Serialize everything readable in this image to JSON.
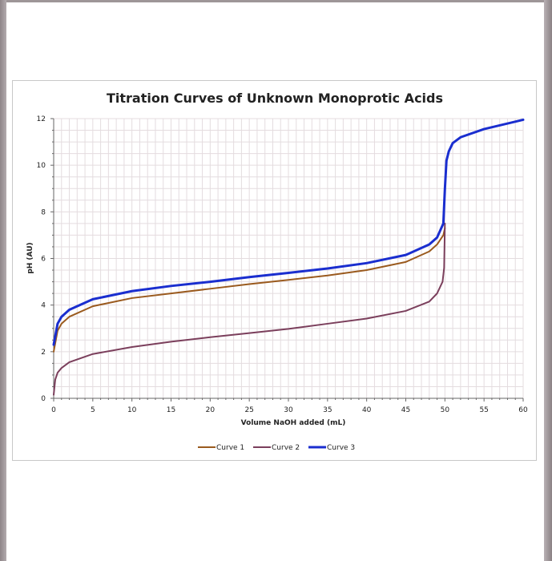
{
  "chart_data": {
    "type": "line",
    "title": "Titration Curves of Unknown Monoprotic Acids",
    "xlabel": "Volume NaOH added (mL)",
    "ylabel": "pH (AU)",
    "xlim": [
      0,
      60
    ],
    "ylim": [
      0,
      12
    ],
    "x_ticks": [
      0,
      5,
      10,
      15,
      20,
      25,
      30,
      35,
      40,
      45,
      50,
      55,
      60
    ],
    "y_ticks": [
      0,
      2,
      4,
      6,
      8,
      10,
      12
    ],
    "grid": true,
    "legend_position": "bottom",
    "series": [
      {
        "name": "Curve 1",
        "color": "#9a5a1e",
        "width": 2,
        "x": [
          0,
          0.5,
          1,
          2,
          5,
          10,
          15,
          20,
          25,
          30,
          35,
          40,
          45,
          48,
          49,
          49.8,
          50
        ],
        "y": [
          2.0,
          2.9,
          3.2,
          3.5,
          3.95,
          4.3,
          4.5,
          4.7,
          4.9,
          5.08,
          5.27,
          5.5,
          5.85,
          6.3,
          6.6,
          7.0,
          7.3
        ]
      },
      {
        "name": "Curve 2",
        "color": "#7b3f5c",
        "width": 2,
        "x": [
          0,
          0.2,
          0.5,
          1,
          2,
          5,
          10,
          15,
          20,
          25,
          30,
          35,
          40,
          45,
          48,
          49,
          49.7,
          49.9,
          50
        ],
        "y": [
          0.15,
          0.8,
          1.1,
          1.3,
          1.55,
          1.9,
          2.2,
          2.43,
          2.62,
          2.8,
          2.98,
          3.2,
          3.42,
          3.75,
          4.15,
          4.5,
          5.0,
          5.6,
          7.5
        ]
      },
      {
        "name": "Curve 3",
        "color": "#1a2ecf",
        "width": 3,
        "x": [
          0,
          0.5,
          1,
          2,
          5,
          10,
          15,
          20,
          25,
          30,
          35,
          40,
          45,
          48,
          49,
          49.8,
          50,
          50.2,
          50.5,
          51,
          52,
          55,
          60
        ],
        "y": [
          2.3,
          3.2,
          3.5,
          3.8,
          4.25,
          4.6,
          4.82,
          5.0,
          5.2,
          5.38,
          5.57,
          5.8,
          6.15,
          6.6,
          6.9,
          7.5,
          9.0,
          10.2,
          10.6,
          10.95,
          11.2,
          11.55,
          11.95
        ]
      }
    ]
  }
}
